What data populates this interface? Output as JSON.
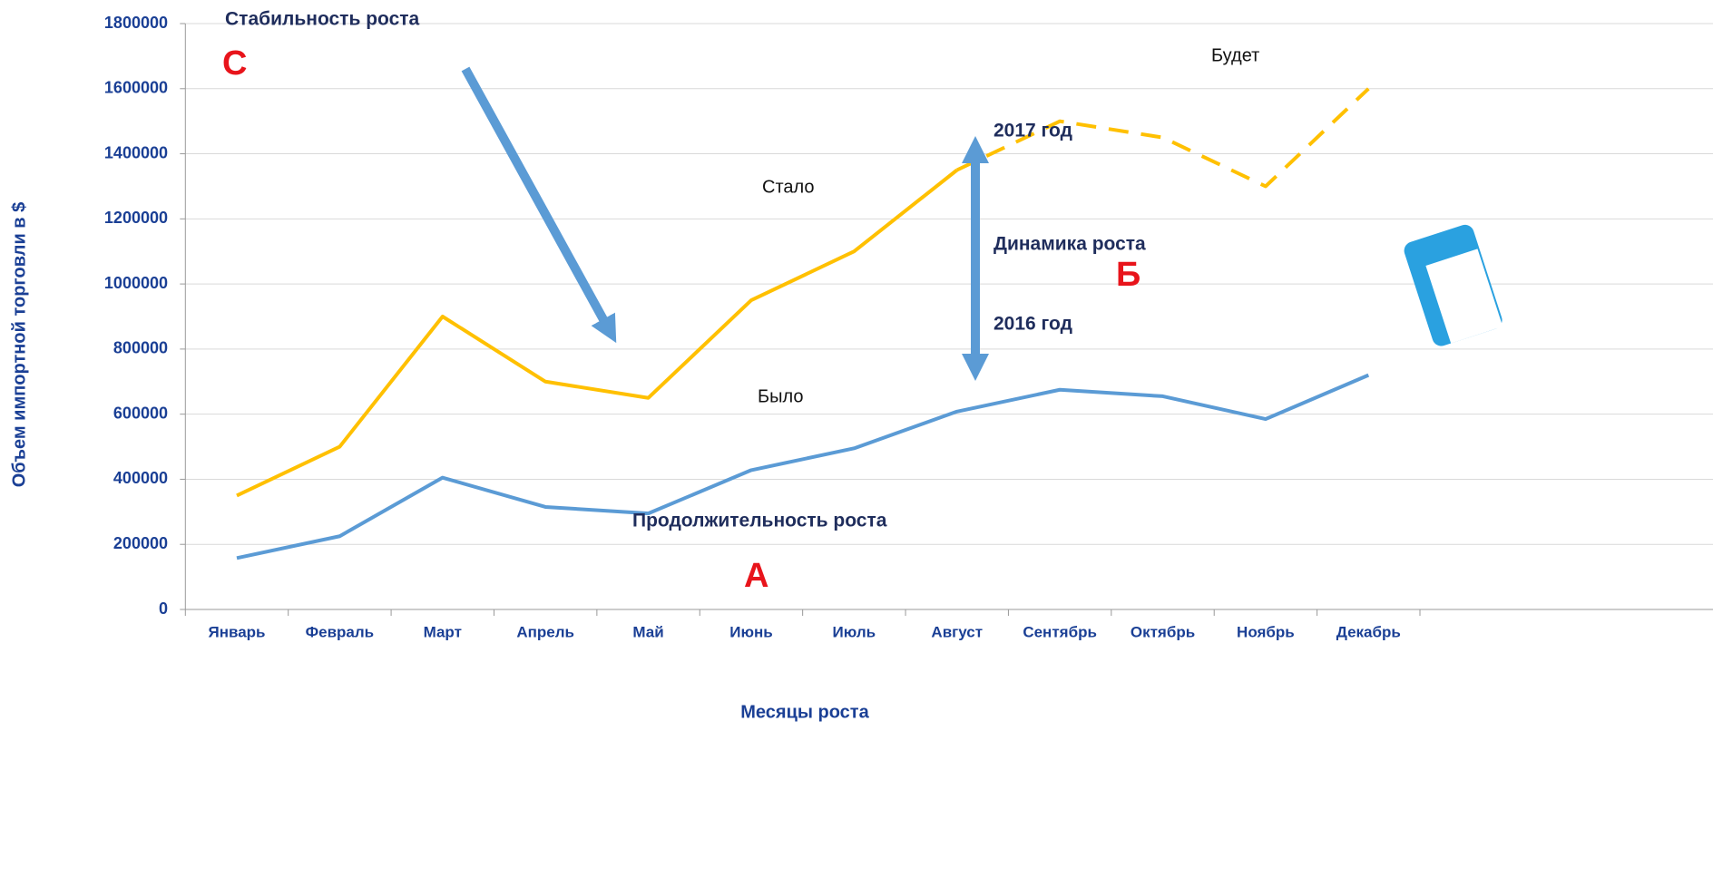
{
  "chart_data": {
    "type": "line",
    "x_label": "Месяцы роста",
    "y_label": "Объем импортной торговли в $",
    "categories": [
      "Январь",
      "Февраль",
      "Март",
      "Апрель",
      "Май",
      "Июнь",
      "Июль",
      "Август",
      "Сентябрь",
      "Октябрь",
      "Ноябрь",
      "Декабрь"
    ],
    "series": [
      {
        "color": "#ffc000",
        "values": [
          350000,
          500000,
          900000,
          700000,
          650000,
          950000,
          1100000,
          1350000,
          1500000,
          1450000,
          1300000,
          1600000
        ],
        "dashed_from": 7
      },
      {
        "color": "#5b9bd5",
        "values": [
          158000,
          225000,
          405000,
          315000,
          295000,
          428000,
          495000,
          608000,
          675000,
          655000,
          585000,
          720000
        ]
      }
    ],
    "ylim": [
      0,
      1800000
    ],
    "yticks": [
      0,
      200000,
      400000,
      600000,
      800000,
      1000000,
      1200000,
      1400000,
      1600000,
      1800000
    ],
    "grid": true,
    "annotations": [
      "Стабильность роста",
      "С",
      "Будет",
      "2017 год",
      "Стало",
      "Динамика роста",
      "Б",
      "2016 год",
      "Было",
      "Продолжительность роста",
      "А"
    ]
  }
}
